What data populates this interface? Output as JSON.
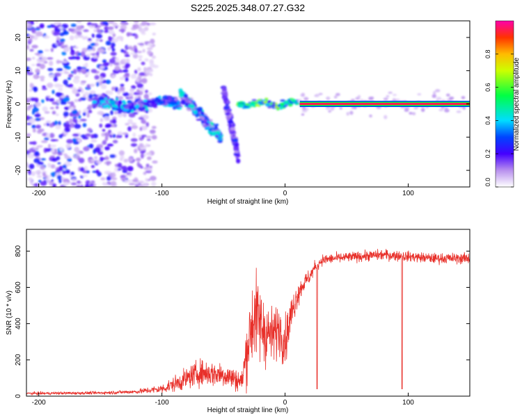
{
  "title": "S225.2025.348.07.27.G32",
  "chart_data": [
    {
      "type": "heatmap",
      "xlabel": "Height of straight line (km)",
      "ylabel": "Frequency (Hz)",
      "xlim": [
        -210,
        150
      ],
      "ylim": [
        -25,
        25
      ],
      "xticks": [
        -200,
        -100,
        0,
        100
      ],
      "yticks": [
        -20,
        -10,
        0,
        10,
        20
      ],
      "colorbar": {
        "label": "Normalized spectral amplitude",
        "range": [
          0,
          1
        ],
        "ticks": [
          "0.0",
          "0.2",
          "0.4",
          "0.6",
          "0.8"
        ],
        "tick_values": [
          0,
          0.2,
          0.4,
          0.6,
          0.8
        ]
      },
      "features": [
        {
          "name": "noise-region",
          "x": [
            -210,
            -115
          ],
          "y": [
            -25,
            25
          ],
          "amplitude": 0.15
        },
        {
          "name": "band-left",
          "x": [
            -155,
            -85
          ],
          "y_center": 0,
          "amplitude": 0.35
        },
        {
          "name": "descending-track-1",
          "x": [
            -85,
            -52
          ],
          "y_from": 3,
          "y_to": -10,
          "amplitude": 0.4
        },
        {
          "name": "descending-track-2",
          "x": [
            -50,
            -38
          ],
          "y_from": 4,
          "y_to": -16,
          "amplitude": 0.2
        },
        {
          "name": "band-middle",
          "x": [
            -38,
            12
          ],
          "y_center": 0,
          "amplitude": 0.7
        },
        {
          "name": "steady-carrier",
          "x": [
            12,
            150
          ],
          "y_center": 0,
          "amplitude": 0.9
        }
      ]
    },
    {
      "type": "line",
      "xlabel": "Height of straight line (km)",
      "ylabel": "SNR (10 * v/v)",
      "xlim": [
        -210,
        150
      ],
      "ylim": [
        0,
        920
      ],
      "xticks": [
        -200,
        -100,
        0,
        100
      ],
      "yticks": [
        0,
        200,
        400,
        600,
        800
      ],
      "series": [
        {
          "name": "SNR",
          "color": "#e8302a"
        }
      ],
      "envelope": {
        "x": [
          -210,
          -150,
          -120,
          -100,
          -85,
          -70,
          -50,
          -35,
          -30,
          -25,
          -20,
          -15,
          -10,
          -5,
          0,
          5,
          10,
          15,
          20,
          25,
          30,
          40,
          60,
          80,
          100,
          120,
          150
        ],
        "mean": [
          15,
          18,
          25,
          40,
          80,
          130,
          120,
          80,
          300,
          450,
          400,
          350,
          330,
          380,
          300,
          450,
          560,
          620,
          660,
          720,
          750,
          760,
          770,
          780,
          770,
          760,
          760
        ],
        "jitter": [
          8,
          8,
          12,
          25,
          50,
          70,
          70,
          60,
          200,
          250,
          220,
          180,
          150,
          140,
          130,
          100,
          70,
          50,
          40,
          35,
          30,
          28,
          28,
          30,
          28,
          28,
          30
        ]
      },
      "dips": [
        {
          "x": 26,
          "y": 40
        },
        {
          "x": 95,
          "y": 40
        }
      ]
    }
  ]
}
